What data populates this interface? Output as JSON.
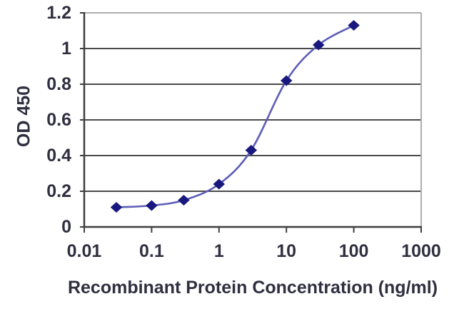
{
  "chart_data": {
    "type": "line",
    "title": "",
    "xlabel": "Recombinant Protein Concentration (ng/ml)",
    "ylabel": "OD 450",
    "x_scale": "log10",
    "xlim": [
      0.01,
      1000
    ],
    "ylim": [
      0,
      1.2
    ],
    "x_ticks": [
      "0.01",
      "0.1",
      "1",
      "10",
      "100",
      "1000"
    ],
    "y_ticks": [
      "0",
      "0.2",
      "0.4",
      "0.6",
      "0.8",
      "1",
      "1.2"
    ],
    "grid": "horizontal",
    "legend": "none",
    "series": [
      {
        "name": "OD 450",
        "marker": "diamond",
        "smooth": true,
        "x": [
          0.03,
          0.1,
          0.3,
          1,
          3,
          10,
          30,
          100
        ],
        "y": [
          0.11,
          0.12,
          0.15,
          0.24,
          0.43,
          0.82,
          1.02,
          1.13
        ]
      }
    ],
    "colors": {
      "line": "#5d5db8",
      "marker": "#18187e",
      "grid": "#4a4a4a",
      "axis": "#3f3f3f",
      "frame_light": "#adadad",
      "text": "#2f2f40",
      "background": "#ffffff"
    }
  }
}
